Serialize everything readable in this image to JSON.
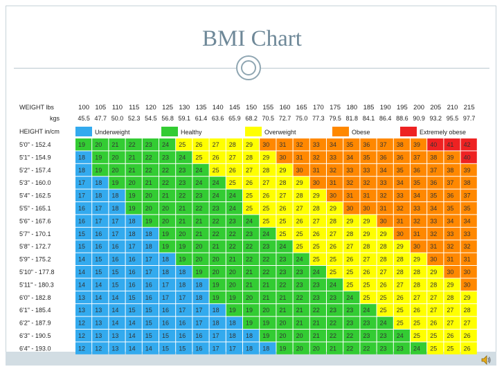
{
  "title": "BMI Chart",
  "chart_data": {
    "type": "heatmap",
    "row_header_weight": "WEIGHT lbs",
    "row_header_kgs": "kgs",
    "row_header_height": "HEIGHT in/cm",
    "weights_lbs": [
      "100",
      "105",
      "110",
      "115",
      "120",
      "125",
      "130",
      "135",
      "140",
      "145",
      "150",
      "155",
      "160",
      "165",
      "170",
      "175",
      "180",
      "185",
      "190",
      "195",
      "200",
      "205",
      "210",
      "215"
    ],
    "weights_kgs": [
      "45.5",
      "47.7",
      "50.0",
      "52.3",
      "54.5",
      "56.8",
      "59.1",
      "61.4",
      "63.6",
      "65.9",
      "68.2",
      "70.5",
      "72.7",
      "75.0",
      "77.3",
      "79.5",
      "81.8",
      "84.1",
      "86.4",
      "88.6",
      "90.9",
      "93.2",
      "95.5",
      "97.7"
    ],
    "heights": [
      "5'0\" - 152.4",
      "5'1\" - 154.9",
      "5'2\" - 157.4",
      "5'3\" - 160.0",
      "5'4\" - 162.5",
      "5'5\" - 165.1",
      "5'6\" - 167.6",
      "5'7\" - 170.1",
      "5'8\" - 172.7",
      "5'9\" - 175.2",
      "5'10\" - 177.8",
      "5'11\" - 180.3",
      "6'0\" - 182.8",
      "6'1\" - 185.4",
      "6'2\" - 187.9",
      "6'3\" - 190.5",
      "6'4\" - 193.0"
    ],
    "legend": [
      {
        "label": "Underweight",
        "color": "#33aaee"
      },
      {
        "label": "Healthy",
        "color": "#33cc33"
      },
      {
        "label": "Overweight",
        "color": "#ffff00"
      },
      {
        "label": "Obese",
        "color": "#ff8800"
      },
      {
        "label": "Extremely obese",
        "color": "#ee2222"
      }
    ],
    "values": [
      [
        19,
        20,
        21,
        22,
        23,
        24,
        25,
        26,
        27,
        28,
        29,
        30,
        31,
        32,
        33,
        34,
        35,
        36,
        37,
        38,
        39,
        40,
        41,
        42
      ],
      [
        18,
        19,
        20,
        21,
        22,
        23,
        24,
        25,
        26,
        27,
        28,
        29,
        30,
        31,
        32,
        33,
        34,
        35,
        36,
        36,
        37,
        38,
        39,
        40
      ],
      [
        18,
        19,
        20,
        21,
        22,
        22,
        23,
        24,
        25,
        26,
        27,
        28,
        29,
        30,
        31,
        32,
        33,
        33,
        34,
        35,
        36,
        37,
        38,
        39
      ],
      [
        17,
        18,
        19,
        20,
        21,
        22,
        23,
        24,
        24,
        25,
        26,
        27,
        28,
        29,
        30,
        31,
        32,
        32,
        33,
        34,
        35,
        36,
        37,
        38
      ],
      [
        17,
        18,
        18,
        19,
        20,
        21,
        22,
        23,
        24,
        24,
        25,
        26,
        27,
        28,
        29,
        30,
        31,
        31,
        32,
        33,
        34,
        35,
        36,
        37
      ],
      [
        16,
        17,
        18,
        19,
        20,
        20,
        21,
        22,
        23,
        24,
        25,
        25,
        26,
        27,
        28,
        29,
        30,
        30,
        31,
        32,
        33,
        34,
        35,
        35
      ],
      [
        16,
        17,
        17,
        18,
        19,
        20,
        21,
        21,
        22,
        23,
        24,
        25,
        25,
        26,
        27,
        28,
        29,
        29,
        30,
        31,
        32,
        33,
        34,
        34
      ],
      [
        15,
        16,
        17,
        18,
        18,
        19,
        20,
        21,
        22,
        22,
        23,
        24,
        25,
        25,
        26,
        27,
        28,
        29,
        29,
        30,
        31,
        32,
        33,
        33
      ],
      [
        15,
        16,
        16,
        17,
        18,
        19,
        19,
        20,
        21,
        22,
        22,
        23,
        24,
        25,
        25,
        26,
        27,
        28,
        28,
        29,
        30,
        31,
        32,
        32
      ],
      [
        14,
        15,
        16,
        16,
        17,
        18,
        19,
        20,
        20,
        21,
        22,
        22,
        23,
        24,
        25,
        25,
        26,
        27,
        28,
        28,
        29,
        30,
        31,
        31
      ],
      [
        14,
        15,
        15,
        16,
        17,
        18,
        18,
        19,
        20,
        20,
        21,
        22,
        23,
        23,
        24,
        25,
        25,
        26,
        27,
        28,
        28,
        29,
        30,
        30
      ],
      [
        14,
        14,
        15,
        16,
        16,
        17,
        18,
        18,
        19,
        20,
        21,
        21,
        22,
        23,
        23,
        24,
        25,
        25,
        26,
        27,
        28,
        28,
        29,
        30
      ],
      [
        13,
        14,
        14,
        15,
        16,
        17,
        17,
        18,
        19,
        19,
        20,
        21,
        21,
        22,
        23,
        23,
        24,
        25,
        25,
        26,
        27,
        27,
        28,
        29
      ],
      [
        13,
        13,
        14,
        15,
        15,
        16,
        17,
        17,
        18,
        19,
        19,
        20,
        21,
        21,
        22,
        23,
        23,
        24,
        25,
        25,
        26,
        27,
        27,
        28
      ],
      [
        12,
        13,
        14,
        14,
        15,
        16,
        16,
        17,
        18,
        18,
        19,
        19,
        20,
        21,
        21,
        22,
        23,
        23,
        24,
        25,
        25,
        26,
        27,
        27
      ],
      [
        12,
        13,
        13,
        14,
        15,
        15,
        16,
        16,
        17,
        18,
        18,
        19,
        20,
        20,
        21,
        22,
        22,
        23,
        23,
        24,
        25,
        25,
        26,
        26
      ],
      [
        12,
        12,
        13,
        14,
        14,
        15,
        15,
        16,
        17,
        17,
        18,
        18,
        19,
        20,
        20,
        21,
        22,
        22,
        23,
        23,
        24,
        25,
        25,
        26
      ]
    ]
  }
}
